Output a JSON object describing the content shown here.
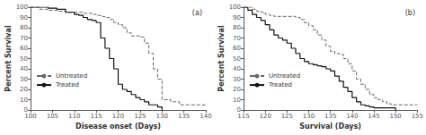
{
  "chart_data": [
    {
      "type": "step",
      "title": "(a)",
      "xlabel": "Disease onset (Days)",
      "ylabel": "Percent Survival",
      "xlim": [
        100,
        140
      ],
      "ylim": [
        0,
        100
      ],
      "xticks": [
        100,
        105,
        110,
        115,
        120,
        125,
        130,
        135,
        140
      ],
      "yticks": [
        0,
        10,
        20,
        30,
        40,
        50,
        60,
        70,
        80,
        90,
        100
      ],
      "grid": false,
      "legend": "left",
      "series": [
        {
          "name": "Untreated",
          "color": "#666666",
          "line_style": "dashed",
          "x": [
            100,
            102,
            104,
            106,
            108,
            110,
            112,
            114,
            115,
            116,
            117,
            118,
            119,
            120,
            121,
            122,
            123,
            124,
            125,
            126,
            127,
            128,
            129,
            130,
            132,
            134,
            136,
            140
          ],
          "values": [
            100,
            98,
            97,
            96,
            95,
            95,
            94,
            93,
            92,
            91,
            90,
            88,
            85,
            83,
            80,
            75,
            72,
            72,
            71,
            65,
            55,
            40,
            30,
            10,
            8,
            5,
            5,
            5
          ]
        },
        {
          "name": "Treated",
          "color": "#111111",
          "line_style": "solid",
          "x": [
            100,
            102,
            104,
            106,
            108,
            110,
            111,
            112,
            113,
            114,
            115,
            116,
            117,
            118,
            119,
            120,
            121,
            122,
            123,
            124,
            125,
            126,
            127,
            128,
            129,
            130
          ],
          "values": [
            100,
            100,
            99,
            98,
            95,
            93,
            92,
            90,
            88,
            87,
            85,
            70,
            60,
            50,
            40,
            25,
            20,
            18,
            15,
            12,
            10,
            8,
            5,
            5,
            3,
            0
          ]
        }
      ]
    },
    {
      "type": "step",
      "title": "(b)",
      "xlabel": "Survival (Days)",
      "ylabel": "Percent Survival",
      "xlim": [
        115,
        155
      ],
      "ylim": [
        0,
        100
      ],
      "xticks": [
        115,
        120,
        125,
        130,
        135,
        140,
        145,
        150,
        155
      ],
      "yticks": [
        0,
        10,
        20,
        30,
        40,
        50,
        60,
        70,
        80,
        90,
        100
      ],
      "grid": false,
      "legend": "left",
      "series": [
        {
          "name": "Untreated",
          "color": "#666666",
          "line_style": "dashed",
          "x": [
            115,
            117,
            118,
            119,
            120,
            121,
            122,
            123,
            124,
            125,
            126,
            127,
            128,
            129,
            130,
            131,
            132,
            133,
            134,
            135,
            136,
            137,
            138,
            139,
            140,
            141,
            142,
            143,
            144,
            145,
            146,
            147,
            148,
            149,
            150,
            155
          ],
          "values": [
            100,
            98,
            96,
            95,
            93,
            92,
            91,
            91,
            91,
            91,
            91,
            90,
            88,
            85,
            82,
            78,
            73,
            68,
            62,
            57,
            55,
            54,
            50,
            45,
            38,
            30,
            25,
            20,
            15,
            12,
            10,
            8,
            6,
            5,
            5,
            5
          ]
        },
        {
          "name": "Treated",
          "color": "#111111",
          "line_style": "solid",
          "x": [
            115,
            116,
            117,
            118,
            119,
            120,
            121,
            122,
            123,
            124,
            125,
            126,
            127,
            128,
            129,
            130,
            131,
            132,
            133,
            134,
            135,
            136,
            137,
            138,
            139,
            140,
            141,
            142,
            143,
            144,
            145,
            150
          ],
          "values": [
            100,
            97,
            93,
            90,
            87,
            83,
            78,
            73,
            70,
            68,
            65,
            60,
            55,
            50,
            47,
            45,
            44,
            43,
            42,
            40,
            38,
            33,
            28,
            22,
            18,
            12,
            8,
            5,
            4,
            3,
            2,
            0
          ]
        }
      ]
    }
  ]
}
